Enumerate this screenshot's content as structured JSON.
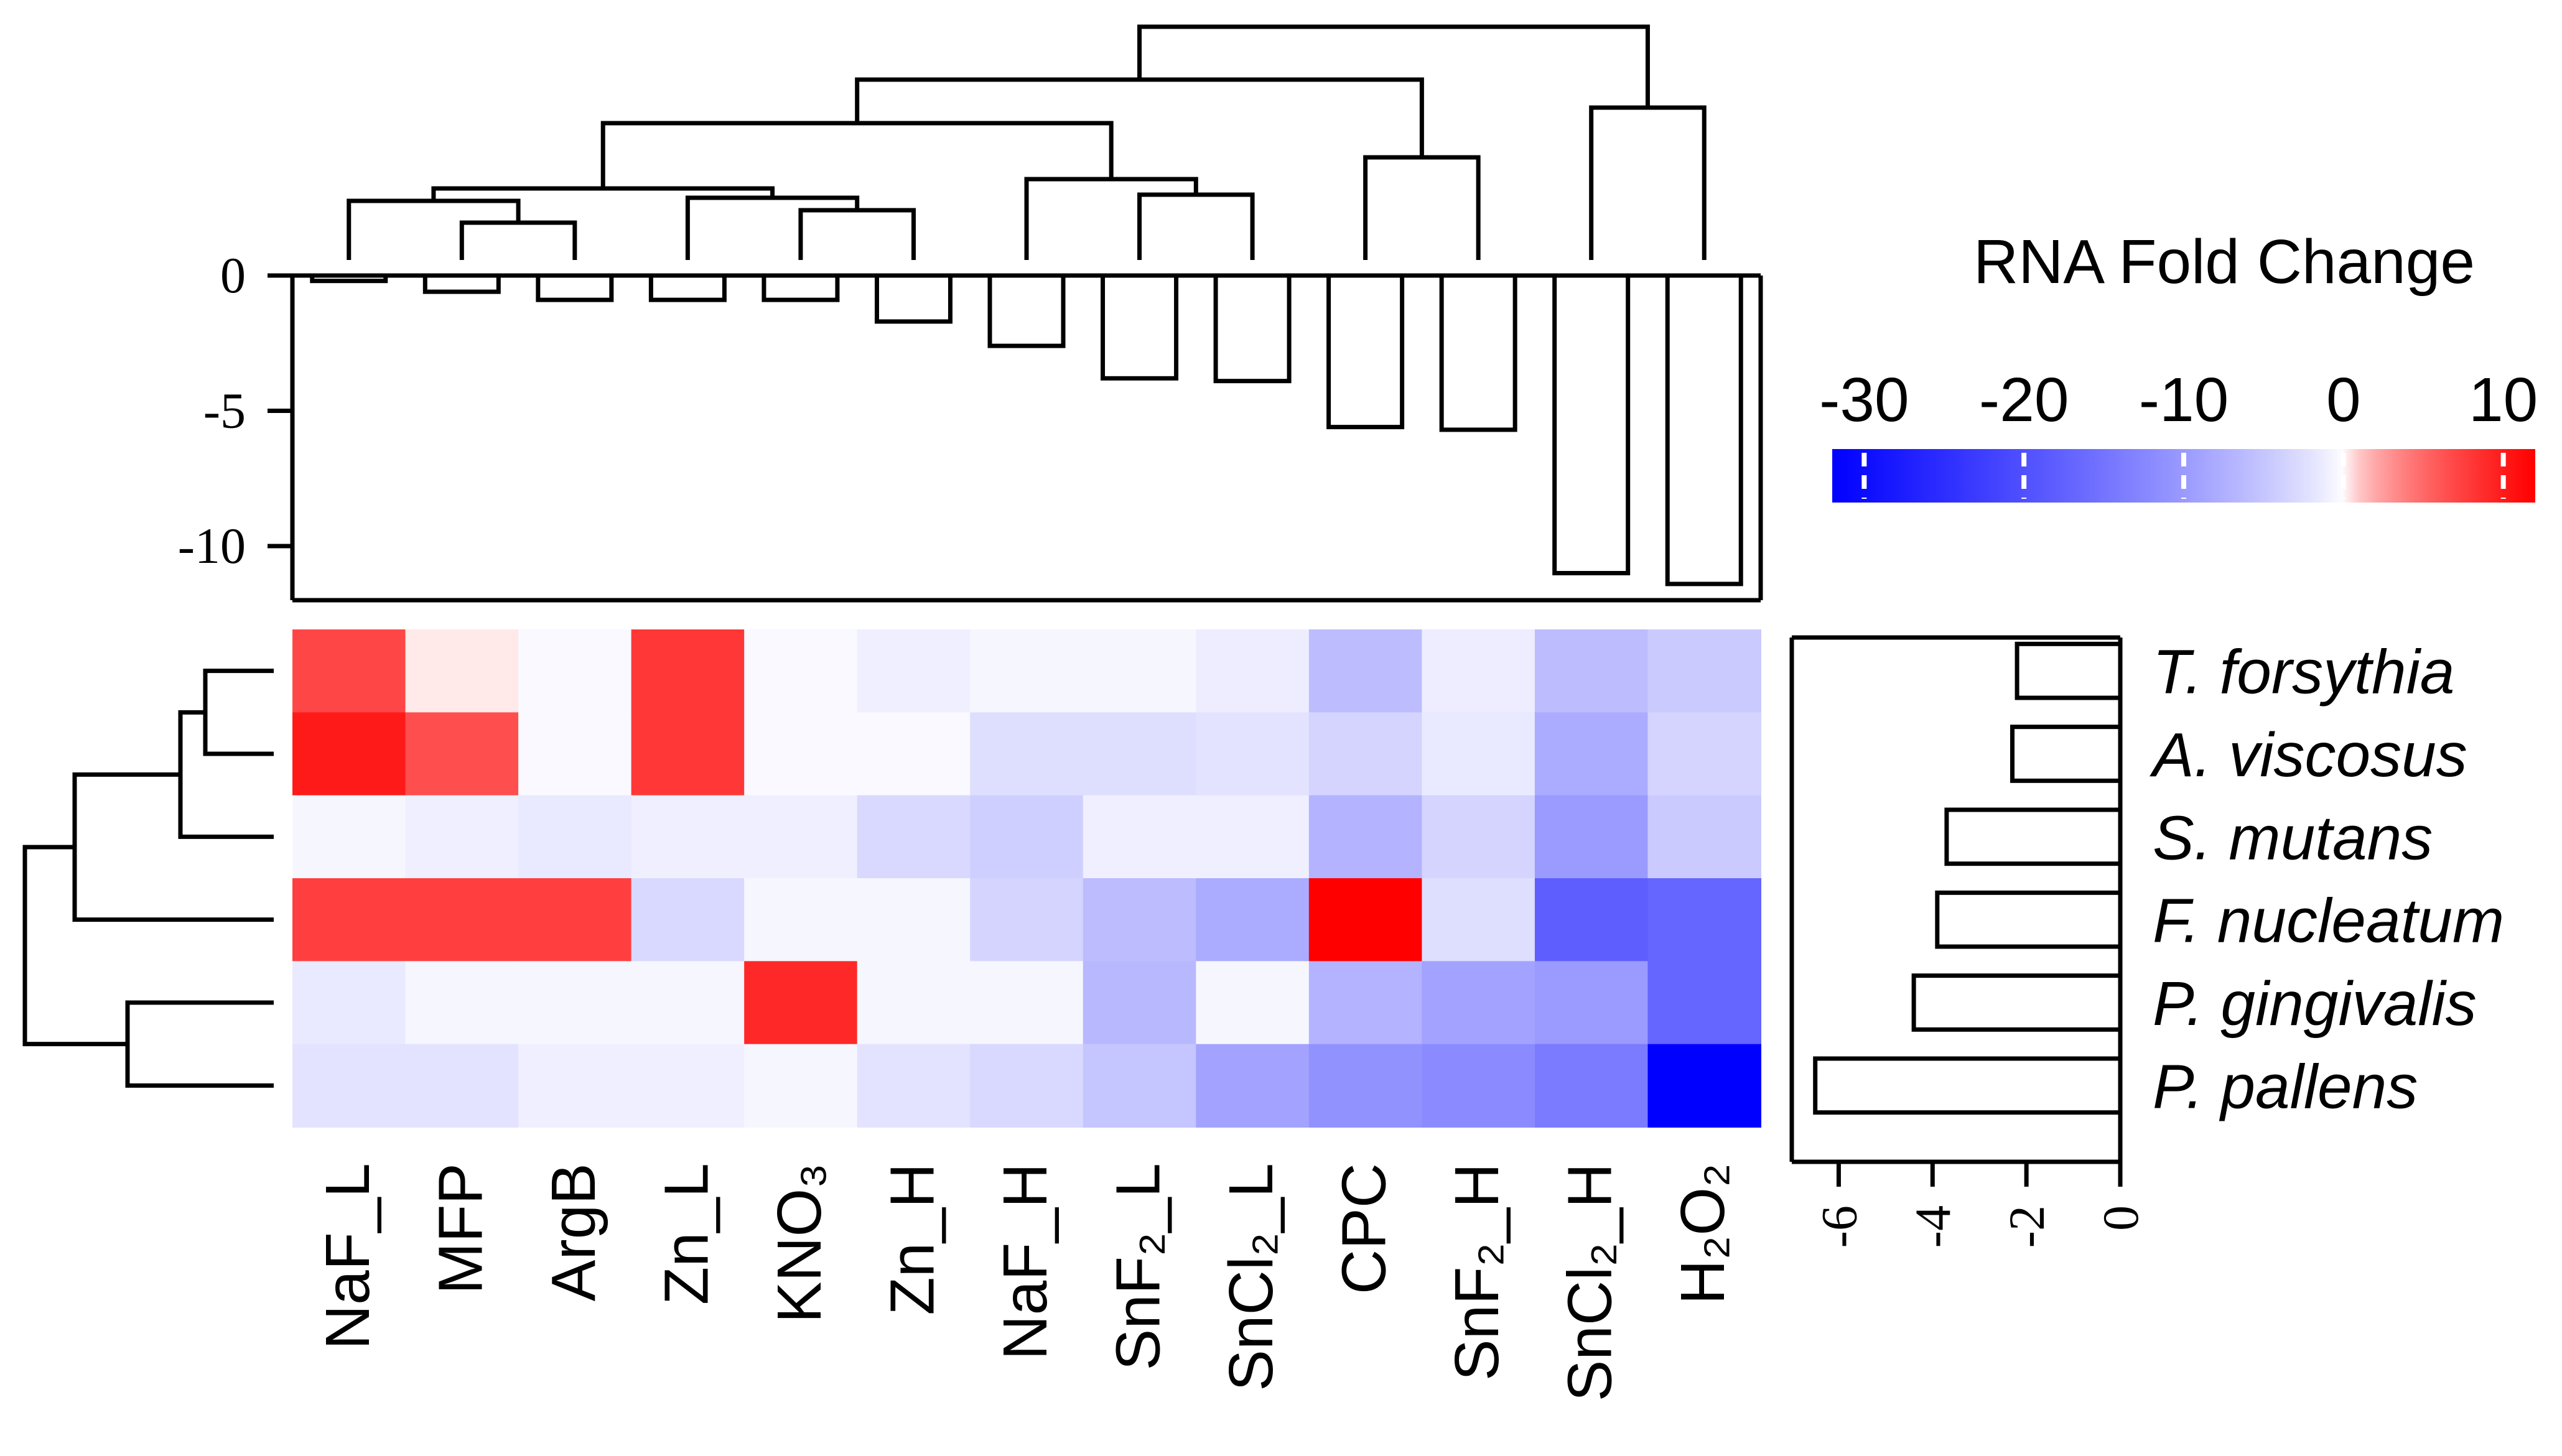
{
  "chart_data": {
    "type": "heatmap",
    "columns": [
      "NaF_L",
      "MFP",
      "ArgB",
      "Zn_L",
      "KNO₃",
      "Zn_H",
      "NaF_H",
      "SnF₂_L",
      "SnCl₂_L",
      "CPC",
      "SnF₂_H",
      "SnCl₂_H",
      "H₂O₂"
    ],
    "rows": [
      "T. forsythia",
      "A. viscosus",
      "S. mutans",
      "F. nucleatum",
      "P. gingivalis",
      "P. pallens"
    ],
    "values": [
      [
        7,
        0.2,
        -0.3,
        8,
        -0.3,
        -1.0,
        -0.5,
        -0.5,
        -1.2,
        -6,
        -1.2,
        -6,
        -4.5
      ],
      [
        10,
        6.5,
        -0.3,
        8,
        -0.3,
        -0.3,
        -2.5,
        -2.5,
        -2.0,
        -3.5,
        -1.5,
        -8,
        -3.5
      ],
      [
        -0.5,
        -1.0,
        -1.5,
        -1.0,
        -1.0,
        -3.0,
        -4.0,
        -1.0,
        -1.0,
        -7,
        -3.5,
        -10,
        -4.5
      ],
      [
        7.5,
        7.5,
        7.5,
        -3.0,
        -0.5,
        -0.5,
        -3.5,
        -6,
        -8,
        12,
        -2.5,
        -18,
        -17
      ],
      [
        -1.5,
        -0.5,
        -0.5,
        -0.5,
        9,
        -0.5,
        -0.5,
        -6.5,
        -0.5,
        -7,
        -9,
        -10,
        -17
      ],
      [
        -2.0,
        -2.0,
        -1.0,
        -1.0,
        -0.5,
        -2.0,
        -3.0,
        -5,
        -9,
        -11,
        -12,
        -14,
        -32
      ]
    ],
    "top_bars": {
      "values": [
        -0.2,
        -0.6,
        -0.9,
        -0.9,
        -0.9,
        -1.7,
        -2.6,
        -3.8,
        -3.9,
        -5.6,
        -5.7,
        -11.0,
        -11.4
      ],
      "tick_labels": [
        "0",
        "-5",
        "-10"
      ],
      "ylim": [
        -12,
        0
      ]
    },
    "side_bars": {
      "values": [
        -2.2,
        -2.3,
        -3.7,
        -3.9,
        -4.4,
        -6.5
      ],
      "tick_labels": [
        "-6",
        "-4",
        "-2",
        "0"
      ],
      "xlim": [
        -7,
        0
      ]
    },
    "legend": {
      "title": "RNA Fold Change",
      "tick_labels": [
        "-30",
        "-20",
        "-10",
        "0",
        "10"
      ],
      "range": [
        -32,
        12
      ],
      "colors": {
        "min": "#0000ff",
        "mid": "#ffffff",
        "max": "#ff0000"
      }
    }
  }
}
